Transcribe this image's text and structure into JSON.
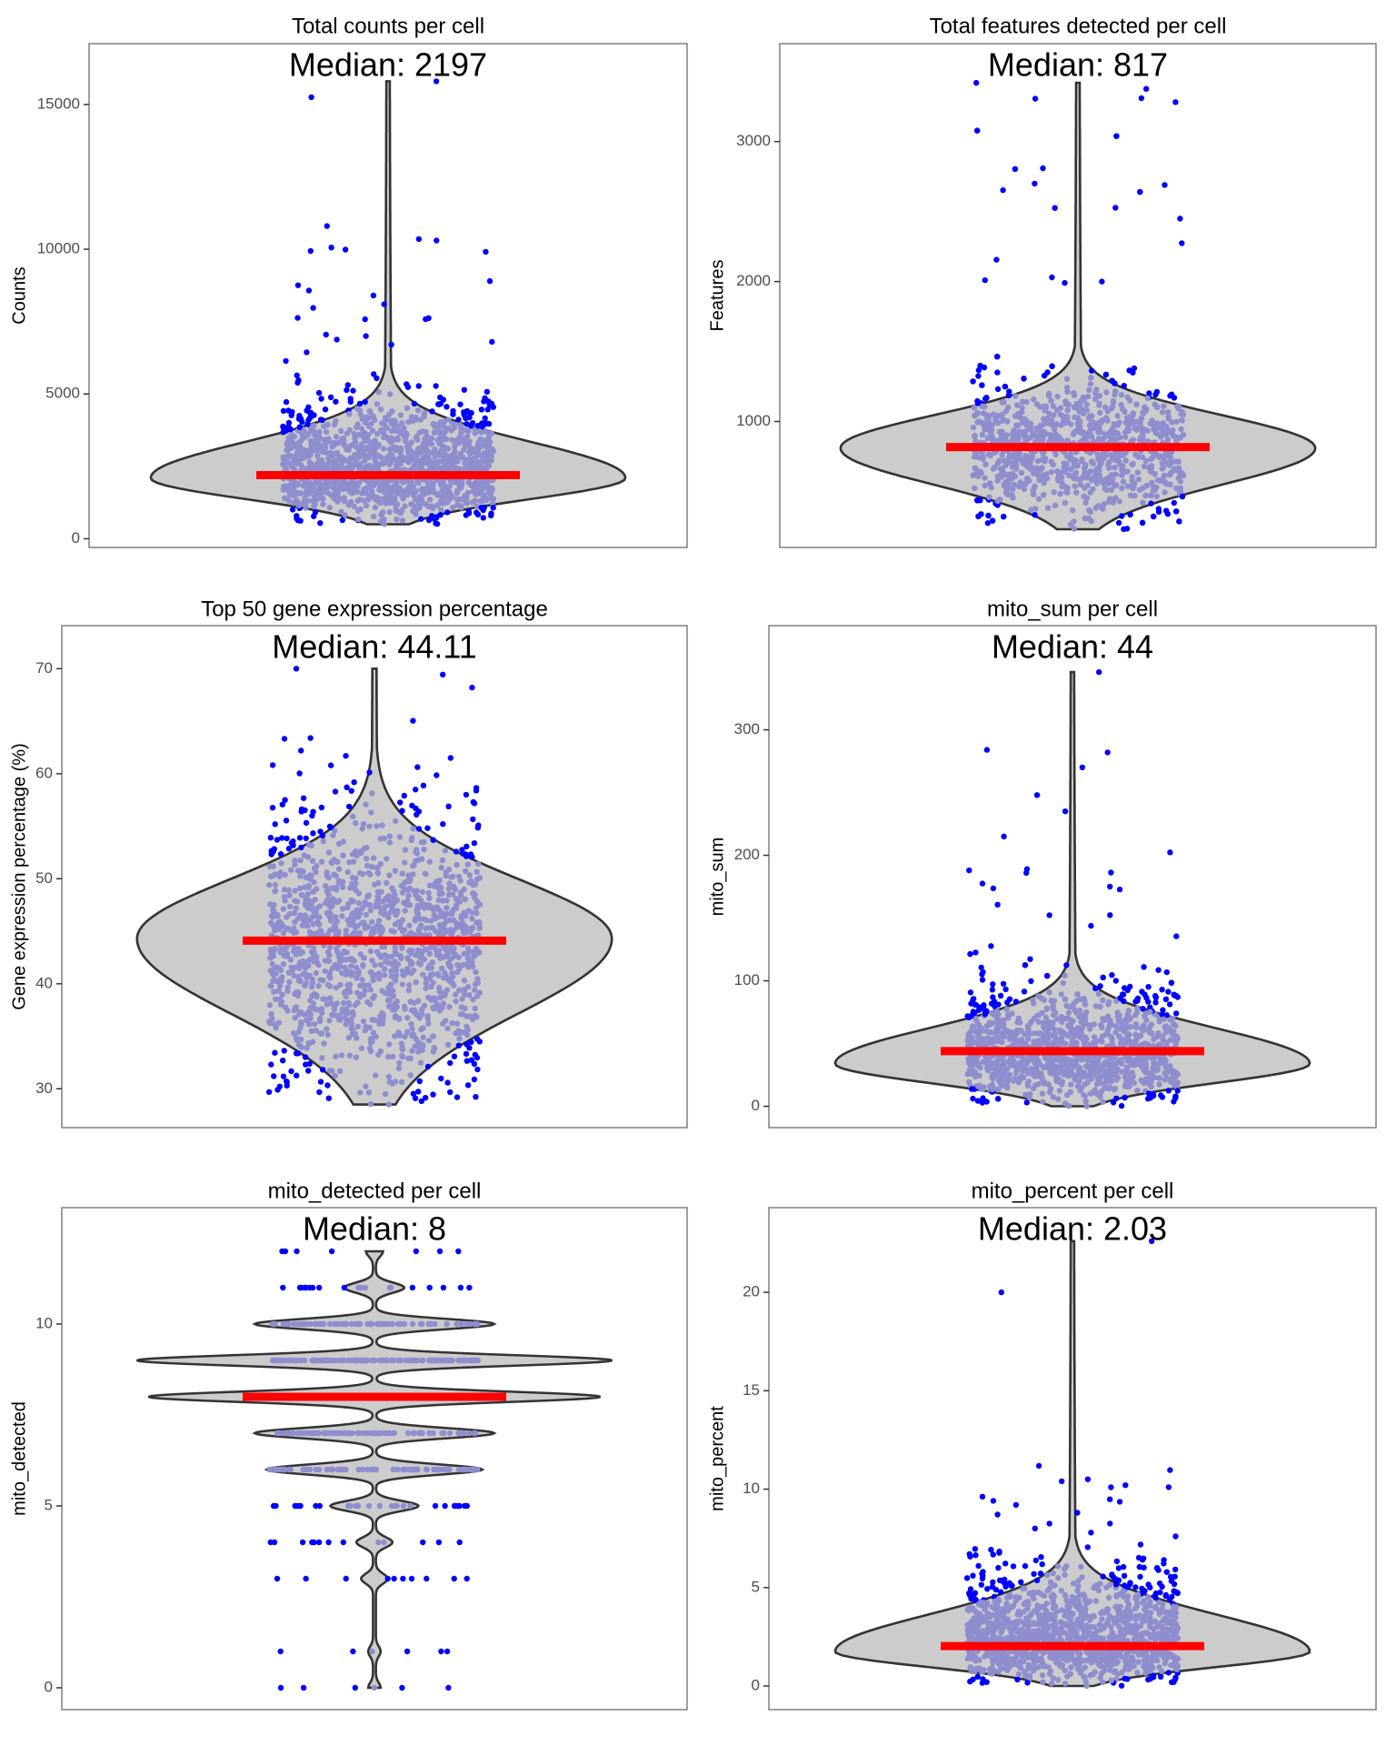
{
  "chart_data": [
    {
      "type": "violin",
      "title": "Total counts per cell",
      "annotation": "Median: 2197",
      "median": 2197,
      "xlabel": "",
      "ylabel": "Counts",
      "yticks": [
        0,
        5000,
        10000,
        15000
      ],
      "ylim": [
        -300,
        17100
      ],
      "range": [
        500,
        15800
      ],
      "mode": 2100,
      "outliers_high": [
        15800,
        15250,
        10800,
        10300,
        10350,
        8900,
        8400,
        8100,
        7050,
        7000
      ],
      "colors": {
        "violin": "#cccccc",
        "inner_points": "#8e8ecf",
        "outer_points": "#0000ff",
        "median": "#ff0000"
      }
    },
    {
      "type": "violin",
      "title": "Total features detected per cell",
      "annotation": "Median: 817",
      "median": 817,
      "xlabel": "",
      "ylabel": "Features",
      "yticks": [
        1000,
        2000,
        3000
      ],
      "ylim": [
        100,
        3700
      ],
      "range": [
        230,
        3420
      ],
      "mode": 810,
      "outliers_high": [
        3420,
        3310,
        2810,
        2700,
        2690,
        2450,
        2030,
        2010,
        2000,
        1990
      ],
      "colors": {
        "violin": "#cccccc",
        "inner_points": "#8e8ecf",
        "outer_points": "#0000ff",
        "median": "#ff0000"
      }
    },
    {
      "type": "violin",
      "title": "Top 50 gene expression percentage",
      "annotation": "Median: 44.11",
      "median": 44.11,
      "xlabel": "",
      "ylabel": "Gene expression percentage (%)",
      "yticks": [
        30,
        40,
        50,
        60,
        70
      ],
      "ylim": [
        26.3,
        74.1
      ],
      "range": [
        28.5,
        70
      ],
      "mode": 44.3,
      "outliers_high": [
        70,
        63.4,
        62.2,
        61.7,
        61.5,
        60.8,
        58.7,
        58.5,
        58.4,
        58.3
      ],
      "colors": {
        "violin": "#cccccc",
        "inner_points": "#8e8ecf",
        "outer_points": "#0000ff",
        "median": "#ff0000"
      }
    },
    {
      "type": "violin",
      "title": "mito_sum per cell",
      "annotation": "Median: 44",
      "median": 44,
      "xlabel": "",
      "ylabel": "mito_sum",
      "yticks": [
        0,
        100,
        200,
        300
      ],
      "ylim": [
        -17,
        383
      ],
      "range": [
        0,
        346
      ],
      "mode": 34,
      "outliers_high": [
        346,
        284,
        282,
        270,
        248,
        235,
        215,
        189,
        188,
        186
      ],
      "colors": {
        "violin": "#cccccc",
        "inner_points": "#8e8ecf",
        "outer_points": "#0000ff",
        "median": "#ff0000"
      }
    },
    {
      "type": "violin",
      "title": "mito_detected per cell",
      "annotation": "Median: 8",
      "median": 8,
      "xlabel": "",
      "ylabel": "mito_detected",
      "yticks": [
        0,
        5,
        10
      ],
      "ylim": [
        -0.6,
        13.2
      ],
      "discrete_levels": [
        0,
        1,
        3,
        4,
        5,
        6,
        7,
        8,
        9,
        10,
        11,
        12
      ],
      "level_relative_width": [
        0.02,
        0.02,
        0.05,
        0.07,
        0.18,
        0.45,
        0.5,
        0.95,
        1.0,
        0.5,
        0.12,
        0.03
      ],
      "colors": {
        "violin": "#cccccc",
        "inner_points": "#8e8ecf",
        "outer_points": "#0000ff",
        "median": "#ff0000"
      }
    },
    {
      "type": "violin",
      "title": "mito_percent per cell",
      "annotation": "Median: 2.03",
      "median": 2.03,
      "xlabel": "",
      "ylabel": "mito_percent",
      "yticks": [
        0,
        5,
        10,
        15,
        20
      ],
      "ylim": [
        -1.2,
        24.3
      ],
      "range": [
        0,
        22.6
      ],
      "mode": 1.75,
      "outliers_high": [
        22.6,
        20,
        10.5,
        10.4,
        10.2,
        10.1,
        9.2,
        8.8,
        8.0,
        7.6
      ],
      "colors": {
        "violin": "#cccccc",
        "inner_points": "#8e8ecf",
        "outer_points": "#0000ff",
        "median": "#ff0000"
      }
    }
  ]
}
